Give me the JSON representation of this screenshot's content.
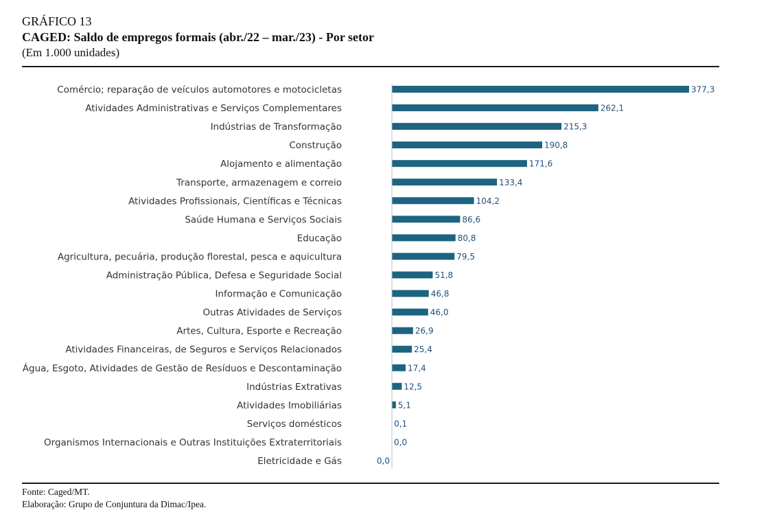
{
  "figure": {
    "number": "GRÁFICO 13",
    "title": "CAGED: Saldo de empregos formais (abr./22 – mar./23) - Por setor",
    "unit": "(Em 1.000 unidades)"
  },
  "footer": {
    "source": "Fonte: Caged/MT.",
    "elaboration": "Elaboração: Grupo de Conjuntura da Dimac/Ipea."
  },
  "chart_data": {
    "type": "bar",
    "orientation": "horizontal",
    "title": "CAGED: Saldo de empregos formais (abr./22 – mar./23) - Por setor",
    "xlabel": "",
    "ylabel": "",
    "grid": false,
    "legend": "none",
    "xlim": [
      0,
      377.3
    ],
    "bar_color": "#1c6480",
    "categories": [
      "Comércio; reparação de veículos automotores e motocicletas",
      "Atividades Administrativas e Serviços Complementares",
      "Indústrias de Transformação",
      "Construção",
      "Alojamento e alimentação",
      "Transporte, armazenagem e correio",
      "Atividades Profissionais, Científicas e Técnicas",
      "Saúde Humana e Serviços Sociais",
      "Educação",
      "Agricultura, pecuária, produção florestal, pesca e aquicultura",
      "Administração Pública, Defesa e Seguridade Social",
      "Informação e Comunicação",
      "Outras Atividades de Serviços",
      "Artes, Cultura, Esporte e Recreação",
      "Atividades Financeiras, de Seguros e Serviços Relacionados",
      "Água, Esgoto, Atividades de Gestão de Resíduos e Descontaminação",
      "Indústrias Extrativas",
      "Atividades Imobiliárias",
      "Serviços domésticos",
      "Organismos Internacionais e Outras Instituições Extraterritoriais",
      "Eletricidade e Gás"
    ],
    "values": [
      377.3,
      262.1,
      215.3,
      190.8,
      171.6,
      133.4,
      104.2,
      86.6,
      80.8,
      79.5,
      51.8,
      46.8,
      46.0,
      26.9,
      25.4,
      17.4,
      12.5,
      5.1,
      0.1,
      0.0,
      0.0
    ],
    "value_labels": [
      "377,3",
      "262,1",
      "215,3",
      "190,8",
      "171,6",
      "133,4",
      "104,2",
      "86,6",
      "80,8",
      "79,5",
      "51,8",
      "46,8",
      "46,0",
      "26,9",
      "25,4",
      "17,4",
      "12,5",
      "5,1",
      "0,1",
      "0,0",
      "0,0"
    ],
    "negative_label_indices": [
      20
    ]
  }
}
